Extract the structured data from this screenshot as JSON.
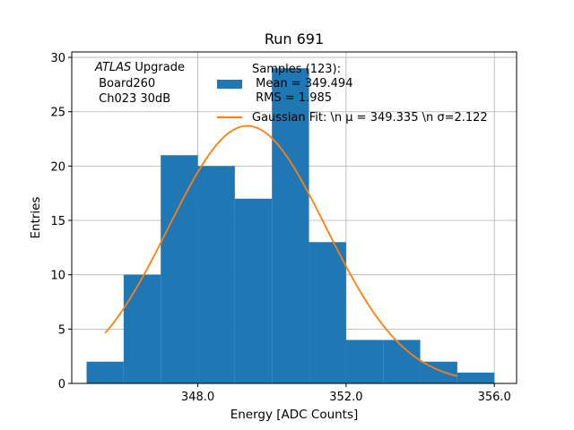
{
  "chart_data": {
    "type": "bar",
    "title": "Run 691",
    "xlabel": "Energy [ADC Counts]",
    "ylabel": "Entries",
    "xlim": [
      344.6,
      356.6
    ],
    "ylim": [
      0,
      30.5
    ],
    "grid": true,
    "xticks": [
      348.0,
      352.0,
      356.0
    ],
    "xtick_labels": [
      "348.0",
      "352.0",
      "356.0"
    ],
    "yticks": [
      0,
      5,
      10,
      15,
      20,
      25,
      30
    ],
    "ytick_labels": [
      "0",
      "5",
      "10",
      "15",
      "20",
      "25",
      "30"
    ],
    "histogram": {
      "name": "Samples",
      "color": "#1f77b4",
      "bin_edges": [
        345,
        346,
        347,
        348,
        349,
        350,
        351,
        352,
        353,
        354,
        355,
        356
      ],
      "counts": [
        2,
        10,
        21,
        20,
        17,
        29,
        13,
        4,
        4,
        2,
        1
      ]
    },
    "fit": {
      "name": "Gaussian Fit",
      "color": "#ff7f0e",
      "mu": 349.335,
      "sigma": 2.122,
      "amplitude": 23.7,
      "x_range": [
        345.5,
        355.0
      ]
    },
    "annotation": {
      "line1_italic": "ATLAS",
      "line1_rest": " Upgrade",
      "line2": " Board260",
      "line3": " Ch023 30dB"
    },
    "legend": {
      "position": "upper-center",
      "hist_lines": [
        "Samples (123):",
        " Mean = 349.494",
        " RMS = 1.985"
      ],
      "fit_line": "Gaussian Fit: \\n μ = 349.335 \\n σ=2.122"
    }
  }
}
